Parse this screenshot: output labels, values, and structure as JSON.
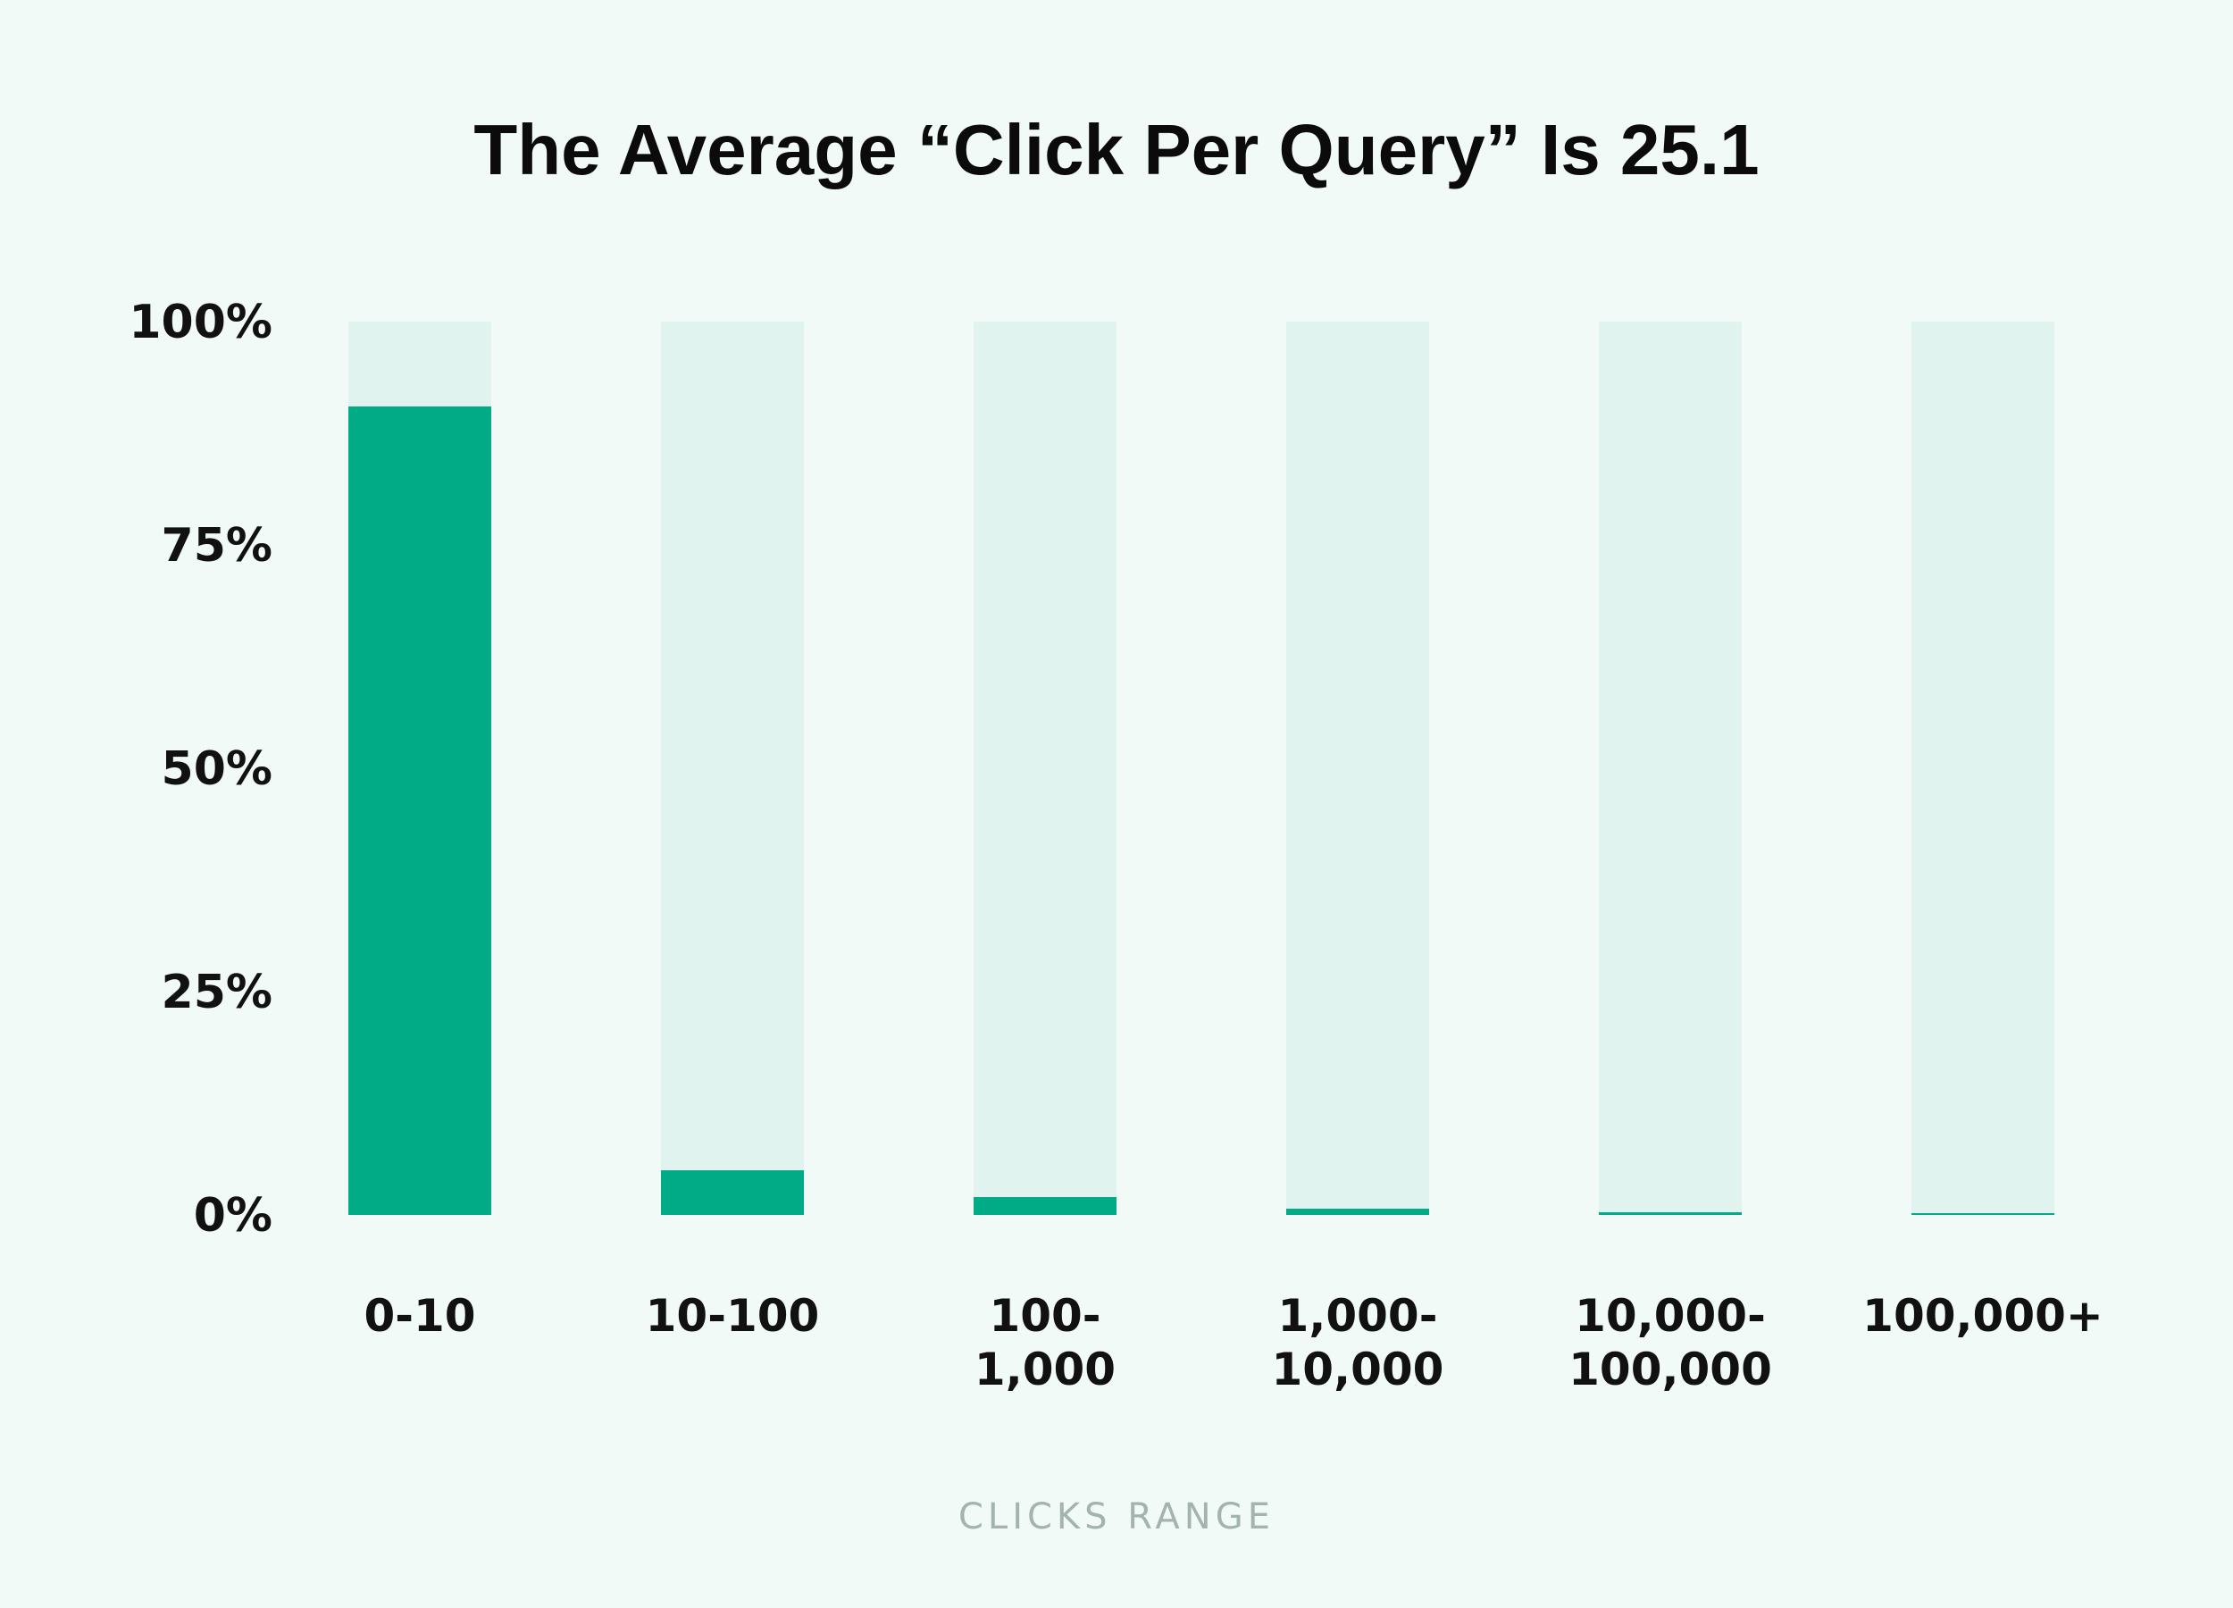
{
  "colors": {
    "background": "#f2faf8",
    "bar_fill": "#00ab86",
    "bar_track": "#e0f3ef",
    "text": "#111111",
    "axis_label": "#a3b4af"
  },
  "chart_data": {
    "type": "bar",
    "title": "The Average “Click Per Query” Is 25.1",
    "xlabel": "CLICKS RANGE",
    "ylabel": "",
    "categories": [
      "0-10",
      "10-100",
      "100-1,000",
      "1,000-10,000",
      "10,000-100,000",
      "100,000+"
    ],
    "category_lines": [
      [
        "0-10"
      ],
      [
        "10-100"
      ],
      [
        "100-",
        "1,000"
      ],
      [
        "1,000-",
        "10,000"
      ],
      [
        "10,000-",
        "100,000"
      ],
      [
        "100,000+"
      ]
    ],
    "values": [
      90.5,
      5.0,
      2.0,
      0.7,
      0.3,
      0.1
    ],
    "ylim": [
      0,
      100
    ],
    "yticks": [
      {
        "value": 100,
        "label": "100%"
      },
      {
        "value": 75,
        "label": "75%"
      },
      {
        "value": 50,
        "label": "50%"
      },
      {
        "value": 25,
        "label": "25%"
      },
      {
        "value": 0,
        "label": "0%"
      }
    ],
    "grid": false,
    "legend": "none",
    "background_track": true
  }
}
